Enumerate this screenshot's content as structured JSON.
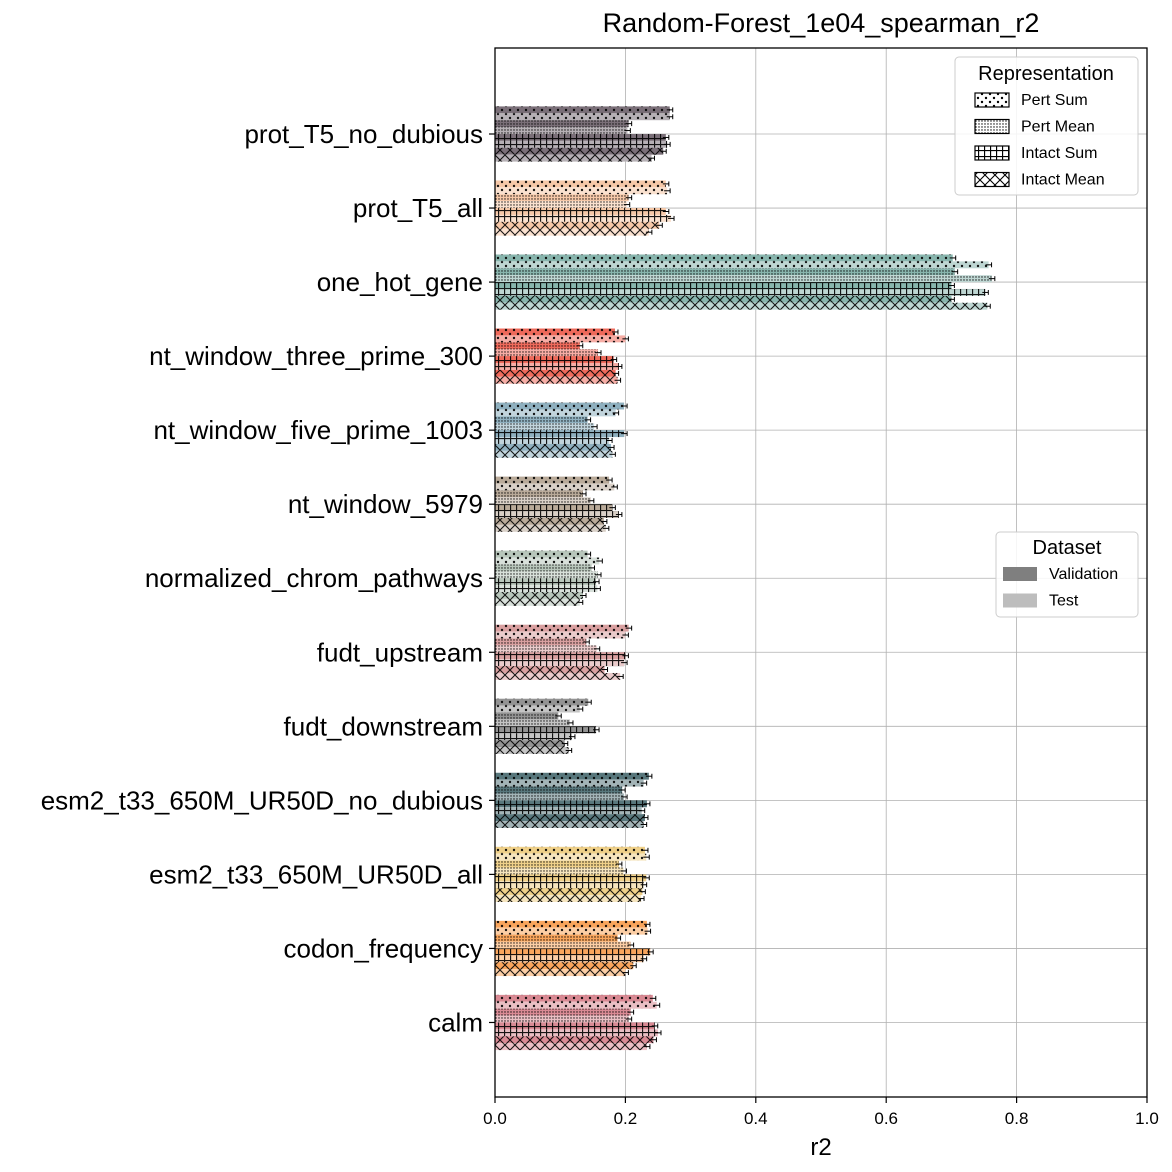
{
  "chart_data": {
    "type": "bar",
    "orientation": "horizontal",
    "title": "Random-Forest_1e04_spearman_r2",
    "xlabel": "r2",
    "ylabel": "",
    "xlim": [
      0,
      1.0
    ],
    "xticks": [
      "0.0",
      "0.2",
      "0.4",
      "0.6",
      "0.8",
      "1.0"
    ],
    "grid": true,
    "categories": [
      "prot_T5_no_dubious",
      "prot_T5_all",
      "one_hot_gene",
      "nt_window_three_prime_300",
      "nt_window_five_prime_1003",
      "nt_window_5979",
      "normalized_chrom_pathways",
      "fudt_upstream",
      "fudt_downstream",
      "esm2_t33_650M_UR50D_no_dubious",
      "esm2_t33_650M_UR50D_all",
      "codon_frequency",
      "calm"
    ],
    "category_colors": [
      "#7a6f78",
      "#f6c8a8",
      "#88b5ad",
      "#ef6a5b",
      "#8fb0bf",
      "#b9aa99",
      "#b8c6bb",
      "#d9a0a0",
      "#939393",
      "#58777c",
      "#efd089",
      "#f9a55c",
      "#d98a94"
    ],
    "representations": [
      "Pert Sum",
      "Pert Mean",
      "Intact Sum",
      "Intact Mean"
    ],
    "representation_hatches": [
      "dots",
      "dense-dots",
      "grid",
      "crosshatch"
    ],
    "datasets": [
      "Validation",
      "Test"
    ],
    "dataset_shades": [
      "#7f7f7f",
      "#bdbdbd"
    ],
    "series": [
      {
        "name": "Pert Sum",
        "dataset": "Validation",
        "values": [
          0.268,
          0.262,
          0.702,
          0.184,
          0.198,
          0.175,
          0.142,
          0.205,
          0.143,
          0.236,
          0.23,
          0.233,
          0.242
        ]
      },
      {
        "name": "Pert Sum",
        "dataset": "Test",
        "values": [
          0.268,
          0.264,
          0.757,
          0.2,
          0.185,
          0.183,
          0.16,
          0.2,
          0.13,
          0.228,
          0.232,
          0.234,
          0.248
        ]
      },
      {
        "name": "Pert Mean",
        "dataset": "Validation",
        "values": [
          0.205,
          0.205,
          0.705,
          0.13,
          0.142,
          0.135,
          0.148,
          0.14,
          0.097,
          0.195,
          0.19,
          0.188,
          0.208
        ]
      },
      {
        "name": "Pert Mean",
        "dataset": "Test",
        "values": [
          0.203,
          0.202,
          0.762,
          0.158,
          0.152,
          0.147,
          0.158,
          0.156,
          0.115,
          0.198,
          0.197,
          0.208,
          0.205
        ]
      },
      {
        "name": "Intact Sum",
        "dataset": "Validation",
        "values": [
          0.262,
          0.262,
          0.7,
          0.182,
          0.198,
          0.18,
          0.155,
          0.2,
          0.155,
          0.233,
          0.232,
          0.238,
          0.245
        ]
      },
      {
        "name": "Intact Sum",
        "dataset": "Test",
        "values": [
          0.264,
          0.27,
          0.752,
          0.19,
          0.175,
          0.19,
          0.157,
          0.198,
          0.118,
          0.225,
          0.228,
          0.228,
          0.25
        ]
      },
      {
        "name": "Intact Mean",
        "dataset": "Validation",
        "values": [
          0.258,
          0.252,
          0.7,
          0.185,
          0.178,
          0.167,
          0.135,
          0.168,
          0.107,
          0.23,
          0.226,
          0.212,
          0.243
        ]
      },
      {
        "name": "Intact Mean",
        "dataset": "Test",
        "values": [
          0.24,
          0.236,
          0.755,
          0.188,
          0.18,
          0.17,
          0.13,
          0.192,
          0.113,
          0.228,
          0.224,
          0.2,
          0.233
        ]
      }
    ],
    "legends": [
      {
        "title": "Representation",
        "placement": "top-right",
        "entries": [
          "Pert Sum",
          "Pert Mean",
          "Intact Sum",
          "Intact Mean"
        ]
      },
      {
        "title": "Dataset",
        "placement": "center-right",
        "entries": [
          "Validation",
          "Test"
        ]
      }
    ]
  }
}
